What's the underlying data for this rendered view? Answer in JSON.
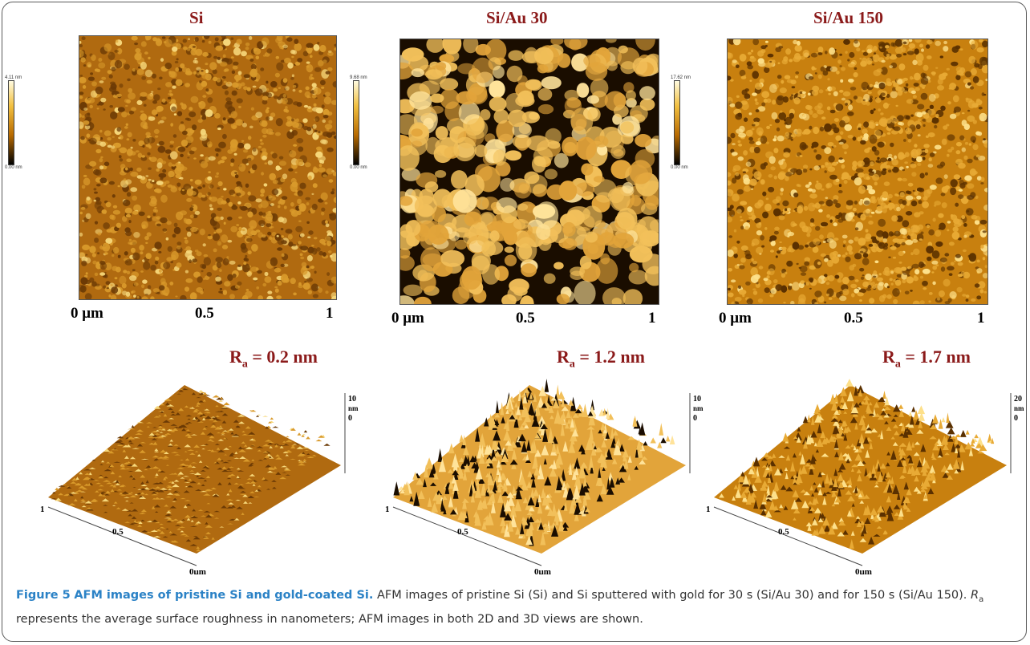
{
  "panels": [
    {
      "title": "Si",
      "colorbar_max": "4.11 nm",
      "colorbar_min": "0.00 nm",
      "axis_ticks": [
        "0 μm",
        "0.5",
        "1"
      ],
      "ra_symbol": "R",
      "ra_sub": "a",
      "ra_value": " = 0.2 nm",
      "z_max": "10",
      "z_unit": "nm",
      "z_min": "0",
      "axis3d_1": "1",
      "axis3d_05": "0.5",
      "axis3d_0": "0μm",
      "colors": {
        "base": "#b06a10",
        "mid": "#d99a2b",
        "high": "#f6d77a",
        "dark": "#6b3a05"
      }
    },
    {
      "title": "Si/Au 30",
      "colorbar_max": "9.68 nm",
      "colorbar_min": "0.00 nm",
      "axis_ticks": [
        "0 μm",
        "0.5",
        "1"
      ],
      "ra_symbol": "R",
      "ra_sub": "a",
      "ra_value": " = 1.2 nm",
      "z_max": "10",
      "z_unit": "nm",
      "z_min": "0",
      "axis3d_1": "1",
      "axis3d_05": "0.5",
      "axis3d_0": "0μm",
      "colors": {
        "base": "#e2a43a",
        "mid": "#f2c05a",
        "high": "#ffe39a",
        "dark": "#1a0d00"
      }
    },
    {
      "title": "Si/Au 150",
      "colorbar_max": "17.62 nm",
      "colorbar_min": "0.00 nm",
      "axis_ticks": [
        "0 μm",
        "0.5",
        "1"
      ],
      "ra_symbol": "R",
      "ra_sub": "a",
      "ra_value": " = 1.7 nm",
      "z_max": "20",
      "z_unit": "nm",
      "z_min": "0",
      "axis3d_1": "1",
      "axis3d_05": "0.5",
      "axis3d_0": "0μm",
      "colors": {
        "base": "#c8800f",
        "mid": "#e8aa35",
        "high": "#fde08a",
        "dark": "#5a3000"
      }
    }
  ],
  "caption": {
    "label": "Figure 5",
    "title": "AFM images of pristine Si and gold-coated Si.",
    "text_1": "AFM images of pristine Si (Si) and Si sputtered with gold for 30 s (Si/Au 30) and for 150 s (Si/Au 150).",
    "ra_symbol": "R",
    "ra_sub": "a",
    "text_2": "represents the average surface roughness in nanometers; AFM images in both 2D and 3D views are shown."
  }
}
